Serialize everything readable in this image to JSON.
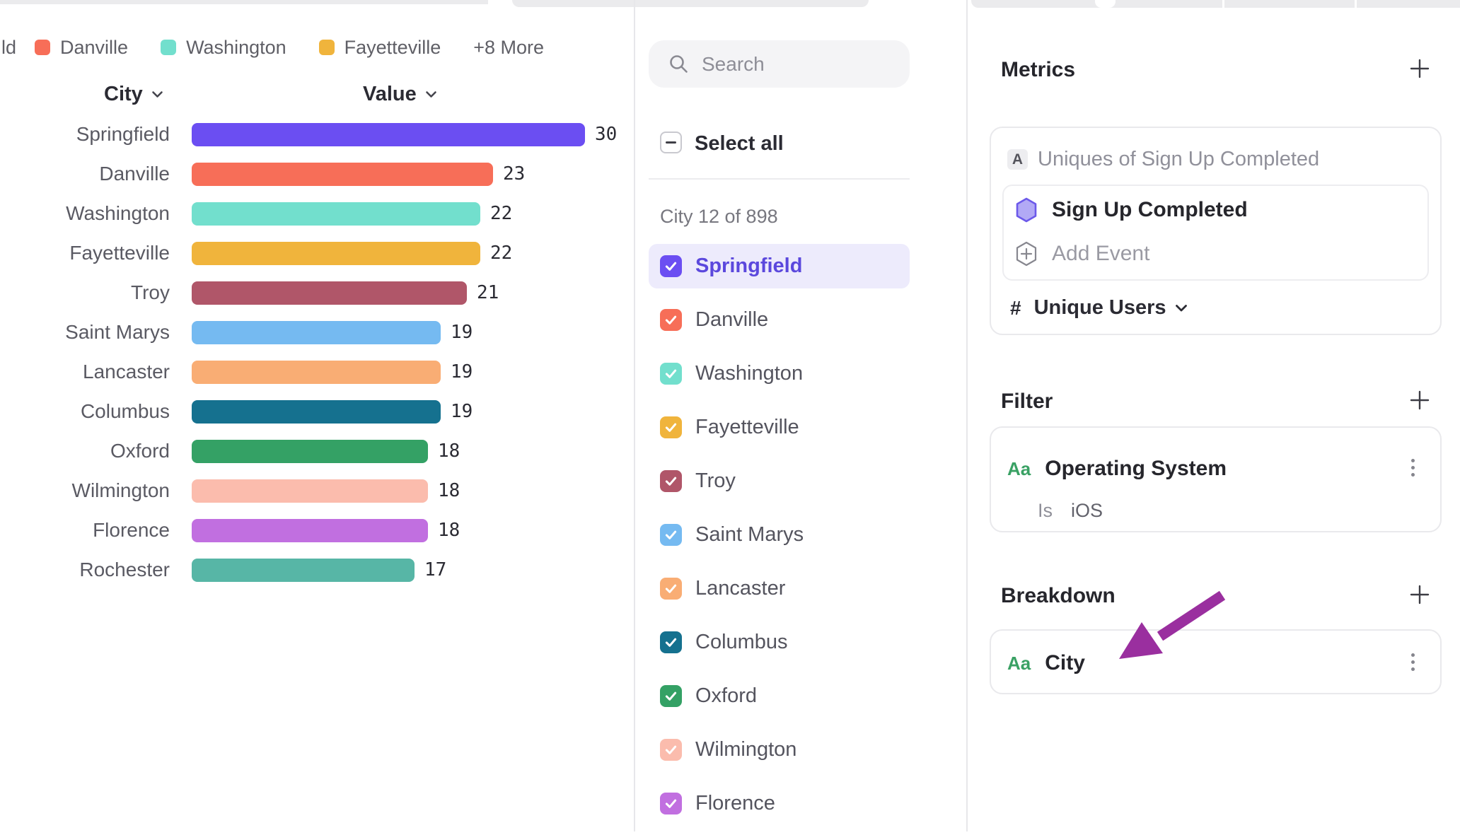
{
  "legend": {
    "clipped_label": "ld",
    "items": [
      {
        "label": "Danville",
        "color": "#f76e58"
      },
      {
        "label": "Washington",
        "color": "#72dfcd"
      },
      {
        "label": "Fayetteville",
        "color": "#f0b43c"
      }
    ],
    "more_label": "+8 More"
  },
  "chart": {
    "city_header": "City",
    "value_header": "Value"
  },
  "chart_data": {
    "type": "bar",
    "orientation": "horizontal",
    "title": "",
    "xlabel": "Value",
    "ylabel": "City",
    "xlim": [
      0,
      30
    ],
    "grid": false,
    "value_labels_shown": true,
    "categories": [
      "Springfield",
      "Danville",
      "Washington",
      "Fayetteville",
      "Troy",
      "Saint Marys",
      "Lancaster",
      "Columbus",
      "Oxford",
      "Wilmington",
      "Florence",
      "Rochester"
    ],
    "values": [
      30,
      23,
      22,
      22,
      21,
      19,
      19,
      19,
      18,
      18,
      18,
      17
    ],
    "colors": [
      "#6b4ef2",
      "#f76e58",
      "#72dfcd",
      "#f0b43c",
      "#b05669",
      "#75baf1",
      "#f9ad74",
      "#15718f",
      "#34a165",
      "#fbbcad",
      "#c16fe0",
      "#57b6a6"
    ]
  },
  "selector": {
    "search_placeholder": "Search",
    "select_all_label": "Select all",
    "select_all_state": "indeterminate",
    "count_label": "City 12 of 898",
    "items": [
      {
        "label": "Springfield",
        "color": "#6b4ef2",
        "checked": true,
        "highlighted": true
      },
      {
        "label": "Danville",
        "color": "#f76e58",
        "checked": true,
        "highlighted": false
      },
      {
        "label": "Washington",
        "color": "#72dfcd",
        "checked": true,
        "highlighted": false
      },
      {
        "label": "Fayetteville",
        "color": "#f0b43c",
        "checked": true,
        "highlighted": false
      },
      {
        "label": "Troy",
        "color": "#b05669",
        "checked": true,
        "highlighted": false
      },
      {
        "label": "Saint Marys",
        "color": "#75baf1",
        "checked": true,
        "highlighted": false
      },
      {
        "label": "Lancaster",
        "color": "#f9ad74",
        "checked": true,
        "highlighted": false
      },
      {
        "label": "Columbus",
        "color": "#15718f",
        "checked": true,
        "highlighted": false
      },
      {
        "label": "Oxford",
        "color": "#34a165",
        "checked": true,
        "highlighted": false
      },
      {
        "label": "Wilmington",
        "color": "#fbbcad",
        "checked": true,
        "highlighted": false
      },
      {
        "label": "Florence",
        "color": "#c16fe0",
        "checked": true,
        "highlighted": false
      }
    ]
  },
  "inspector": {
    "metrics": {
      "heading": "Metrics",
      "metric_badge": "A",
      "metric_title": "Uniques of Sign Up Completed",
      "event_name": "Sign Up Completed",
      "add_event_label": "Add Event",
      "measure_prefix": "#",
      "measure_label": "Unique Users"
    },
    "filter": {
      "heading": "Filter",
      "property_type": "Aa",
      "property_name": "Operating System",
      "operator": "Is",
      "value": "iOS"
    },
    "breakdown": {
      "heading": "Breakdown",
      "property_type": "Aa",
      "property_name": "City",
      "annotation_arrow_color": "#9a2f9f"
    }
  }
}
